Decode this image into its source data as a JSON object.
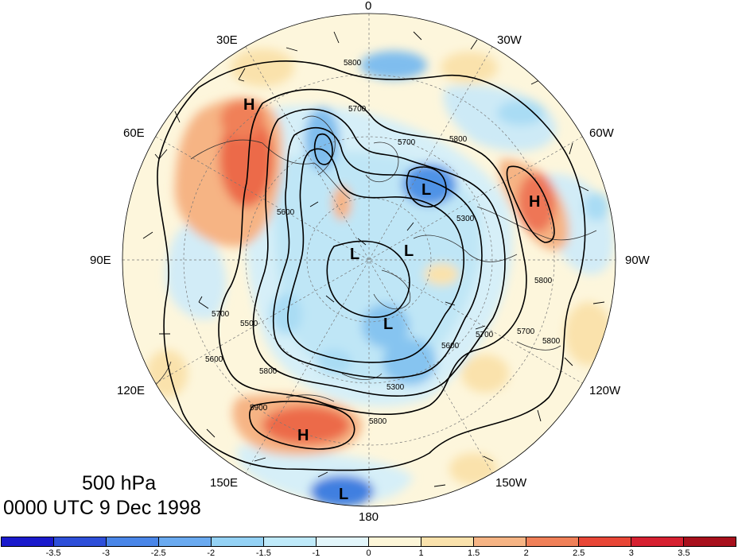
{
  "title": {
    "level": "500 hPa",
    "time": "0000 UTC 9 Dec 1998"
  },
  "longitude_labels": {
    "top": "0",
    "upper_left": "30E",
    "upper_right": "30W",
    "left_upper": "60E",
    "right_upper": "60W",
    "left": "90E",
    "right": "90W",
    "left_lower": "120E",
    "right_lower": "120W",
    "lower_left": "150E",
    "lower_right": "150W",
    "bottom": "180"
  },
  "pressure_centers": {
    "h1": "H",
    "h2": "H",
    "h3": "H",
    "l1": "L",
    "l2": "L",
    "l3": "L",
    "l4": "L",
    "l5": "L"
  },
  "contour_labels": {
    "c1": "5800",
    "c2": "5700",
    "c3": "5800",
    "c4": "5700",
    "c5": "5600",
    "c6": "5500",
    "c7": "5700",
    "c8": "5600",
    "c9": "5800",
    "c10": "5900",
    "c11": "5800",
    "c12": "5300",
    "c13": "5600",
    "c14": "5700",
    "c15": "5700",
    "c16": "5800",
    "c17": "5800",
    "c18": "5300"
  },
  "colorbar": {
    "ticks": [
      "-3.5",
      "-3",
      "-2.5",
      "-2",
      "-1.5",
      "-1",
      "0",
      "1",
      "1.5",
      "2",
      "2.5",
      "3",
      "3.5"
    ],
    "colors": [
      "#1a1acc",
      "#2e4fd9",
      "#4a86e8",
      "#6aaaf0",
      "#94d2f5",
      "#bfeafa",
      "#e3f6fb",
      "#fdf6d8",
      "#fae2ac",
      "#f6b484",
      "#f08058",
      "#e84636",
      "#d62030",
      "#a8101c"
    ]
  },
  "plot_style": {
    "anomaly_palette": "blue-white-red",
    "contour_color": "#000000"
  }
}
